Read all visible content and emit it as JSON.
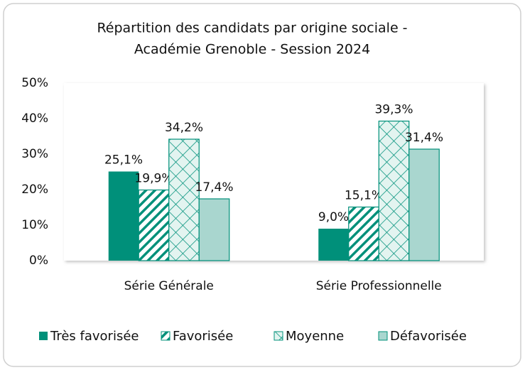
{
  "chart_data": {
    "type": "bar",
    "title": [
      "Répartition des candidats par origine sociale -",
      "Académie Grenoble - Session 2024"
    ],
    "categories": [
      "Série Générale",
      "Série Professionnelle"
    ],
    "series": [
      {
        "name": "Très favorisée",
        "color": "#00907a",
        "pattern": "solid",
        "values": [
          25.1,
          9.0
        ],
        "value_labels": [
          "25,1%",
          "9,0%"
        ]
      },
      {
        "name": "Favorisée",
        "color": "#00907a",
        "pattern": "diagonal",
        "values": [
          19.9,
          15.1
        ],
        "value_labels": [
          "19,9%",
          "15,1%"
        ]
      },
      {
        "name": "Moyenne",
        "color": "#00907a",
        "pattern": "crosshatch",
        "values": [
          34.2,
          39.3
        ],
        "value_labels": [
          "34,2%",
          "39,3%"
        ]
      },
      {
        "name": "Défavorisée",
        "color": "#a9d6cf",
        "pattern": "solid",
        "values": [
          17.4,
          31.4
        ],
        "value_labels": [
          "17,4%",
          "31,4%"
        ]
      }
    ],
    "ylim": [
      0,
      50
    ],
    "yticks": [
      {
        "value": 0,
        "label": "0%"
      },
      {
        "value": 10,
        "label": "10%"
      },
      {
        "value": 20,
        "label": "20%"
      },
      {
        "value": 30,
        "label": "30%"
      },
      {
        "value": 40,
        "label": "40%"
      },
      {
        "value": 50,
        "label": "50%"
      }
    ],
    "legend": "bottom"
  }
}
